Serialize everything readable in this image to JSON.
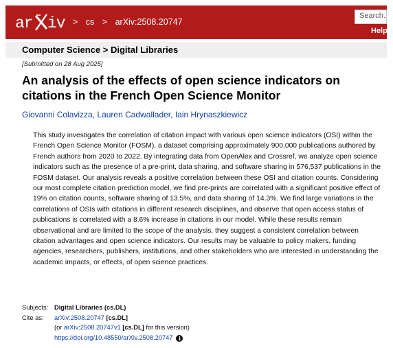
{
  "header": {
    "logo_text": "arXiv",
    "crumbs": [
      ">",
      "cs",
      ">",
      "arXiv:2508.20747"
    ],
    "search_placeholder": "Search...",
    "help_label": "Help"
  },
  "subheader": {
    "text": "Computer Science > Digital Libraries"
  },
  "paper": {
    "submitted": "[Submitted on 28 Aug 2025]",
    "title": "An analysis of the effects of open science indicators on citations in the French Open Science Monitor",
    "authors": [
      "Giovanni Colavizza",
      "Lauren Cadwallader",
      "Iain Hrynaszkiewicz"
    ],
    "abstract": "This study investigates the correlation of citation impact with various open science indicators (OSI) within the French Open Science Monitor (FOSM), a dataset comprising approximately 900,000 publications authored by French authors from 2020 to 2022. By integrating data from OpenAlex and Crossref, we analyze open science indicators such as the presence of a pre-print, data sharing, and software sharing in 576,537 publications in the FOSM dataset. Our analysis reveals a positive correlation between these OSI and citation counts. Considering our most complete citation prediction model, we find pre-prints are correlated with a significant positive effect of 19% on citation counts, software sharing of 13.5%, and data sharing of 14.3%. We find large variations in the correlations of OSIs with citations in different research disciplines, and observe that open access status of publications is correlated with a 8.6% increase in citations in our model. While these results remain observational and are limited to the scope of the analysis, they suggest a consistent correlation between citation advantages and open science indicators. Our results may be valuable to policy makers, funding agencies, researchers, publishers, institutions, and other stakeholders who are interested in understanding the academic impacts, or effects, of open science practices."
  },
  "meta": {
    "subjects_label": "Subjects:",
    "subjects_value": "Digital Libraries (cs.DL)",
    "cite_label": "Cite as:",
    "cite_id": "arXiv:2508.20747",
    "cite_cat": "[cs.DL]",
    "or_prefix": "(or",
    "cite_version": "arXiv:2508.20747v1",
    "cite_version_cat": "[cs.DL]",
    "or_suffix": "for this version)",
    "doi": "https://doi.org/10.48550/arXiv.2508.20747",
    "info_icon": "i"
  },
  "colors": {
    "header_bg": "#b31b1b",
    "link": "#0b3fa3",
    "subheader_bg": "#efefef"
  }
}
